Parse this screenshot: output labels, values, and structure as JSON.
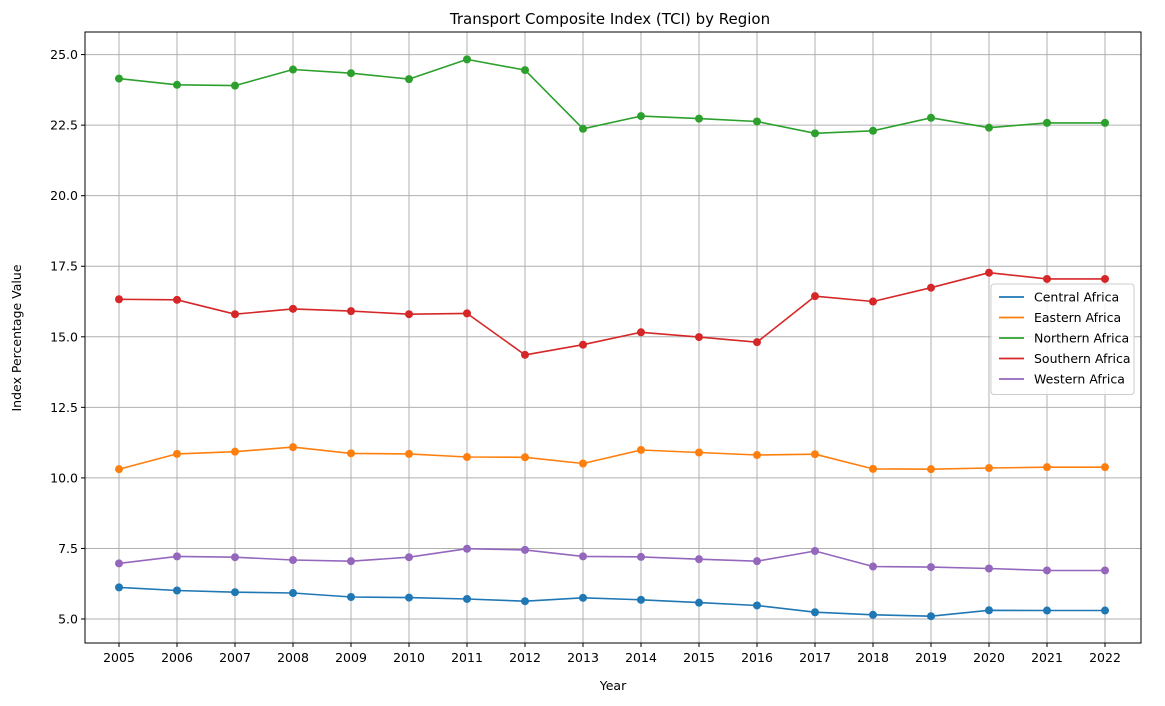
{
  "chart_data": {
    "type": "line",
    "title": "Transport Composite Index (TCI) by Region",
    "xlabel": "Year",
    "ylabel": "Index Percentage Value",
    "x": [
      "2005",
      "2006",
      "2007",
      "2008",
      "2009",
      "2010",
      "2011",
      "2012",
      "2013",
      "2014",
      "2015",
      "2016",
      "2017",
      "2018",
      "2019",
      "2020",
      "2021",
      "2022"
    ],
    "ylim": [
      4.15,
      25.8
    ],
    "yticks": [
      "5.0",
      "7.5",
      "10.0",
      "12.5",
      "15.0",
      "17.5",
      "20.0",
      "22.5",
      "25.0"
    ],
    "grid": true,
    "legend_position": "center-right",
    "markers": true,
    "series": [
      {
        "name": "Central Africa",
        "color": "#1f77b4",
        "values": [
          6.12,
          6.01,
          5.95,
          5.92,
          5.78,
          5.76,
          5.71,
          5.63,
          5.75,
          5.68,
          5.58,
          5.48,
          5.24,
          5.15,
          5.1,
          5.31,
          5.3,
          5.3
        ]
      },
      {
        "name": "Eastern Africa",
        "color": "#ff7f0e",
        "values": [
          10.31,
          10.85,
          10.93,
          11.09,
          10.87,
          10.85,
          10.74,
          10.73,
          10.51,
          10.99,
          10.9,
          10.81,
          10.84,
          10.32,
          10.31,
          10.35,
          10.38,
          10.38
        ]
      },
      {
        "name": "Northern Africa",
        "color": "#2ca02c",
        "values": [
          24.15,
          23.93,
          23.9,
          24.47,
          24.34,
          24.13,
          24.83,
          24.45,
          22.37,
          22.82,
          22.73,
          22.63,
          22.21,
          22.3,
          22.76,
          22.41,
          22.58,
          22.58
        ]
      },
      {
        "name": "Southern Africa",
        "color": "#d62728",
        "values": [
          16.33,
          16.31,
          15.8,
          15.99,
          15.91,
          15.8,
          15.83,
          14.36,
          14.72,
          15.16,
          14.99,
          14.81,
          16.44,
          16.25,
          16.74,
          17.27,
          17.05,
          17.05
        ]
      },
      {
        "name": "Western Africa",
        "color": "#9467bd",
        "values": [
          6.97,
          7.22,
          7.19,
          7.09,
          7.05,
          7.19,
          7.49,
          7.45,
          7.22,
          7.2,
          7.12,
          7.05,
          7.41,
          6.86,
          6.84,
          6.79,
          6.72,
          6.72
        ]
      }
    ]
  }
}
